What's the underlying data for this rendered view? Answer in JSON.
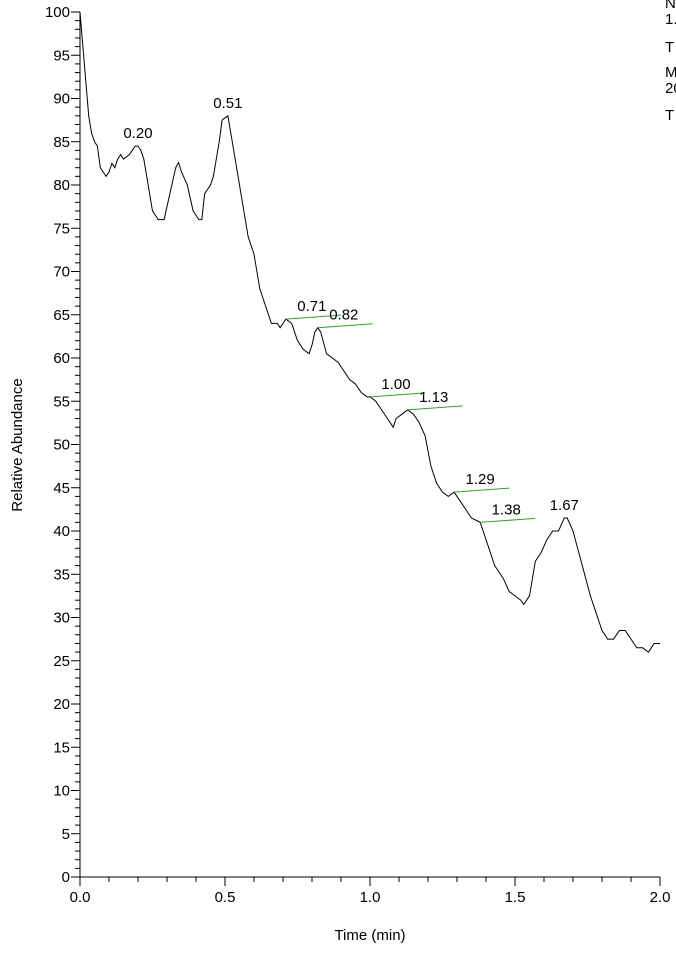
{
  "chart_data": {
    "type": "line",
    "header_lines": [
      "N",
      "1.",
      "T",
      "M",
      "20",
      "T"
    ],
    "xlabel": "Time (min)",
    "ylabel": "Relative Abundance",
    "xlim": [
      0,
      2
    ],
    "ylim": [
      0,
      100
    ],
    "xticks": [
      {
        "value": 0,
        "label": "0.0"
      },
      {
        "value": 0.5,
        "label": "0.5"
      },
      {
        "value": 1,
        "label": "1.0"
      },
      {
        "value": 1.5,
        "label": "1.5"
      },
      {
        "value": 2,
        "label": "2.0"
      }
    ],
    "xminorticks": [
      0.1,
      0.2,
      0.3,
      0.4,
      0.6,
      0.7,
      0.8,
      0.9,
      1.1,
      1.2,
      1.3,
      1.4,
      1.6,
      1.7,
      1.8,
      1.9
    ],
    "yticks": [
      0,
      5,
      10,
      15,
      20,
      25,
      30,
      35,
      40,
      45,
      50,
      55,
      60,
      65,
      70,
      75,
      80,
      85,
      90,
      95,
      100
    ],
    "yminorticks": [
      1,
      2,
      3,
      4,
      6,
      7,
      8,
      9,
      11,
      12,
      13,
      14,
      16,
      17,
      18,
      19,
      21,
      22,
      23,
      24,
      26,
      27,
      28,
      29,
      31,
      32,
      33,
      34,
      36,
      37,
      38,
      39,
      41,
      42,
      43,
      44,
      46,
      47,
      48,
      49,
      51,
      52,
      53,
      54,
      56,
      57,
      58,
      59,
      61,
      62,
      63,
      64,
      66,
      67,
      68,
      69,
      71,
      72,
      73,
      74,
      76,
      77,
      78,
      79,
      81,
      82,
      83,
      84,
      86,
      87,
      88,
      89,
      91,
      92,
      93,
      94,
      96,
      97,
      98,
      99
    ],
    "series": [
      {
        "color": "#000000",
        "x": [
          0,
          0.01,
          0.02,
          0.03,
          0.04,
          0.05,
          0.06,
          0.07,
          0.08,
          0.09,
          0.1,
          0.11,
          0.12,
          0.13,
          0.14,
          0.15,
          0.17,
          0.19,
          0.2,
          0.21,
          0.22,
          0.23,
          0.25,
          0.27,
          0.29,
          0.31,
          0.33,
          0.34,
          0.35,
          0.37,
          0.39,
          0.41,
          0.42,
          0.43,
          0.45,
          0.46,
          0.47,
          0.48,
          0.49,
          0.51,
          0.52,
          0.54,
          0.56,
          0.58,
          0.6,
          0.62,
          0.64,
          0.66,
          0.68,
          0.69,
          0.7,
          0.71,
          0.73,
          0.75,
          0.77,
          0.79,
          0.8,
          0.81,
          0.82,
          0.83,
          0.85,
          0.87,
          0.89,
          0.91,
          0.93,
          0.95,
          0.97,
          0.99,
          1,
          1.02,
          1.04,
          1.06,
          1.08,
          1.09,
          1.11,
          1.13,
          1.15,
          1.17,
          1.19,
          1.21,
          1.23,
          1.25,
          1.27,
          1.29,
          1.31,
          1.33,
          1.35,
          1.38,
          1.4,
          1.43,
          1.46,
          1.48,
          1.5,
          1.52,
          1.53,
          1.55,
          1.57,
          1.59,
          1.61,
          1.63,
          1.65,
          1.67,
          1.68,
          1.7,
          1.72,
          1.74,
          1.76,
          1.78,
          1.8,
          1.82,
          1.84,
          1.86,
          1.88,
          1.9,
          1.92,
          1.94,
          1.96,
          1.98,
          2
        ],
        "values": [
          100,
          96,
          92,
          88,
          86,
          85,
          84.5,
          82,
          81.5,
          81,
          81.5,
          82.5,
          82,
          83,
          83.5,
          83,
          83.5,
          84.5,
          84.5,
          84,
          83,
          81,
          77,
          76,
          76,
          79,
          82,
          82.6,
          81.5,
          80,
          77,
          76,
          76,
          79,
          80,
          81,
          83,
          85,
          87.5,
          88,
          86,
          82,
          78,
          74,
          72,
          68,
          66,
          64,
          64,
          63.5,
          64,
          64.5,
          64,
          62,
          61,
          60.5,
          61.5,
          63,
          63.5,
          63,
          60.5,
          60,
          59.5,
          58.5,
          57.5,
          57,
          56,
          55.5,
          55.5,
          55,
          54,
          53,
          52,
          53,
          53.5,
          54,
          53.5,
          52.5,
          51,
          47.5,
          45.5,
          44.5,
          44,
          44.5,
          43.5,
          42.5,
          41.5,
          41,
          39,
          36,
          34.5,
          33,
          32.5,
          32,
          31.5,
          32.5,
          36.5,
          37.5,
          39,
          40,
          40,
          41.5,
          41.5,
          40,
          37.5,
          35,
          32.5,
          30.5,
          28.5,
          27.5,
          27.5,
          28.5,
          28.5,
          27.5,
          26.5,
          26.5,
          26,
          27,
          27
        ]
      }
    ],
    "peaks": [
      {
        "x": 0.2,
        "y": 84.5,
        "label": "0.20",
        "marker": false
      },
      {
        "x": 0.51,
        "y": 88,
        "label": "0.51",
        "marker": false
      },
      {
        "x": 0.71,
        "y": 64.5,
        "label": "0.71",
        "marker": true
      },
      {
        "x": 0.82,
        "y": 63.5,
        "label": "0.82",
        "marker": true
      },
      {
        "x": 1,
        "y": 55.5,
        "label": "1.00",
        "marker": true
      },
      {
        "x": 1.13,
        "y": 54,
        "label": "1.13",
        "marker": true
      },
      {
        "x": 1.29,
        "y": 44.5,
        "label": "1.29",
        "marker": true
      },
      {
        "x": 1.38,
        "y": 41,
        "label": "1.38",
        "marker": true
      },
      {
        "x": 1.67,
        "y": 41.5,
        "label": "1.67",
        "marker": false
      }
    ],
    "peak_marker_color": "#33a02c"
  }
}
